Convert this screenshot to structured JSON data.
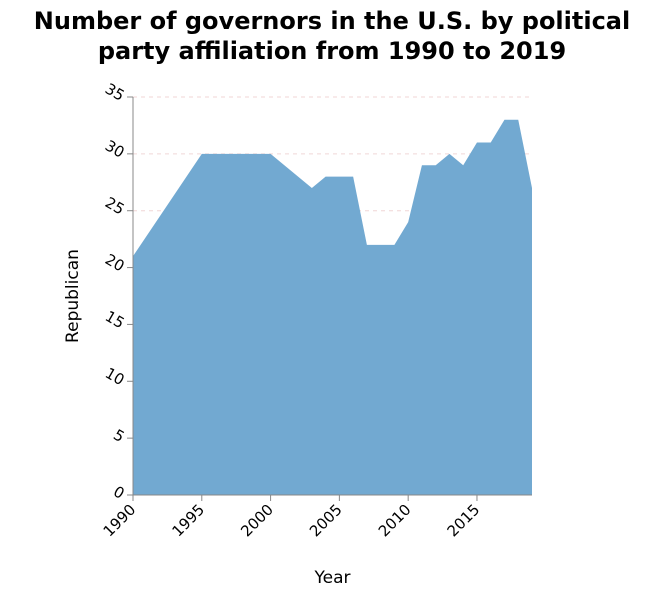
{
  "chart_title": {
    "line1": "Number of governors in the U.S. by political",
    "line2": "party affiliation from 1990 to 2019"
  },
  "chart_data": {
    "type": "area",
    "title": "Number of governors in the U.S. by political party affiliation from 1990 to 2019",
    "xlabel": "Year",
    "ylabel": "Republican",
    "xlim": [
      1990,
      2019
    ],
    "ylim": [
      0,
      35
    ],
    "x_ticks": [
      1990,
      1995,
      2000,
      2005,
      2010,
      2015
    ],
    "y_ticks": [
      0,
      5,
      10,
      15,
      20,
      25,
      30,
      35
    ],
    "grid": true,
    "fill_color": "#72a9d1",
    "series": [
      {
        "x": [
          1990,
          1995,
          1996,
          1997,
          1998,
          1999,
          2000,
          2001,
          2002,
          2003,
          2004,
          2005,
          2006,
          2007,
          2008,
          2009,
          2010,
          2011,
          2012,
          2013,
          2014,
          2015,
          2016,
          2017,
          2018,
          2019
        ],
        "values": [
          21,
          30,
          30,
          30,
          30,
          30,
          30,
          29,
          28,
          27,
          28,
          28,
          28,
          22,
          22,
          22,
          24,
          29,
          29,
          30,
          29,
          31,
          31,
          33,
          33,
          27
        ]
      }
    ]
  }
}
